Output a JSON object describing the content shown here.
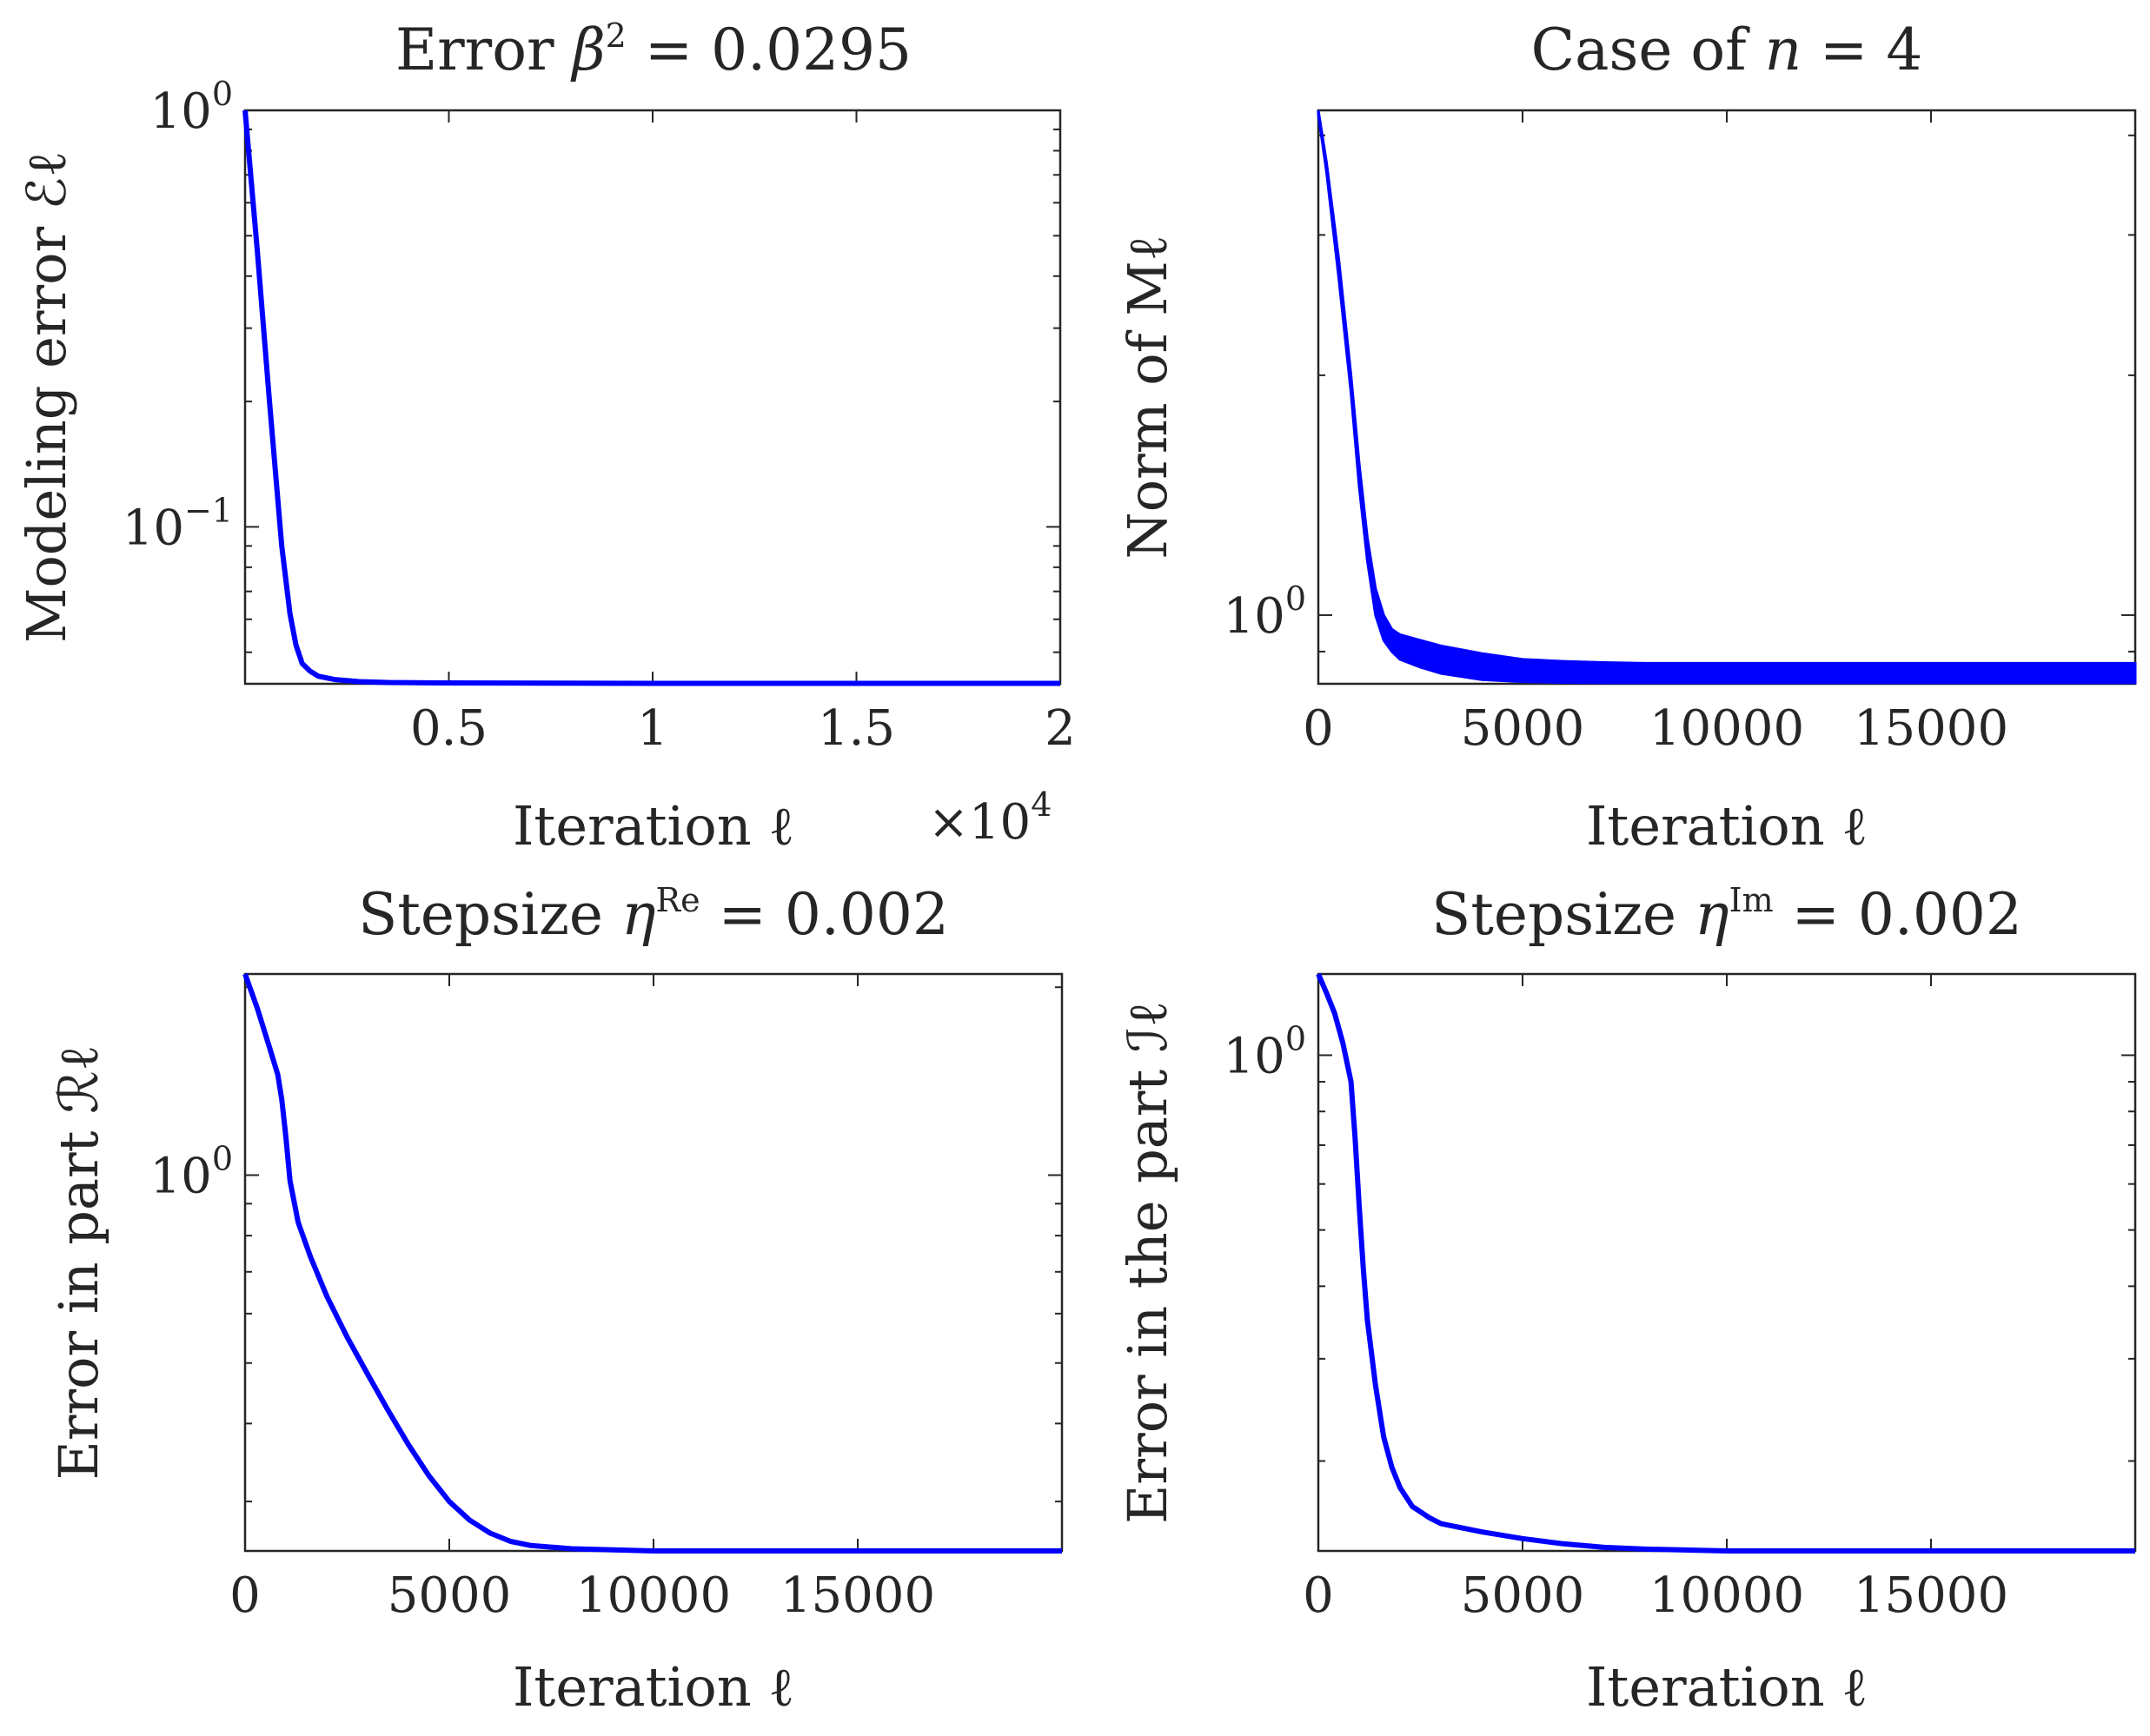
{
  "chart_data": [
    {
      "id": "tl",
      "type": "line",
      "title": "Error β² = 0.0295",
      "title_parts": {
        "pre": "Error ",
        "sym": "β",
        "sup": "2",
        "post": " = 0.0295"
      },
      "xlabel": "Iteration ℓ",
      "ylabel": "Modeling error ℰℓ",
      "x_multiplier": "×10",
      "x_multiplier_exp": "4",
      "xlim": [
        0,
        20000
      ],
      "yscale": "log",
      "ylim": [
        0.042,
        1.0
      ],
      "xticks": [
        {
          "v": 5000,
          "label": "0.5"
        },
        {
          "v": 10000,
          "label": "1"
        },
        {
          "v": 15000,
          "label": "1.5"
        },
        {
          "v": 20000,
          "label": "2"
        }
      ],
      "yticks": [
        {
          "v": 1.0,
          "base": "10",
          "exp": "0"
        },
        {
          "v": 0.1,
          "base": "10",
          "exp": "−1"
        }
      ],
      "series": [
        {
          "name": "ℰℓ",
          "color": "#0000ff",
          "x": [
            0,
            300,
            600,
            900,
            1100,
            1250,
            1400,
            1600,
            1800,
            2200,
            2800,
            3500,
            5000,
            10000,
            20000
          ],
          "y": [
            1.0,
            0.46,
            0.2,
            0.09,
            0.062,
            0.052,
            0.047,
            0.045,
            0.0438,
            0.043,
            0.0425,
            0.0423,
            0.0422,
            0.0421,
            0.0421
          ]
        }
      ]
    },
    {
      "id": "tr",
      "type": "line",
      "title": "Case of n = 4",
      "title_parts": {
        "pre": "Case of ",
        "sym": "n",
        "post": " = 4"
      },
      "xlabel": "Iteration ℓ",
      "ylabel": "Norm of Mℓ",
      "xlim": [
        0,
        20000
      ],
      "yscale": "log",
      "ylim": [
        0.82,
        4.3
      ],
      "xticks": [
        {
          "v": 0,
          "label": "0"
        },
        {
          "v": 5000,
          "label": "5000"
        },
        {
          "v": 10000,
          "label": "10000"
        },
        {
          "v": 15000,
          "label": "15000"
        }
      ],
      "yticks": [
        {
          "v": 1.0,
          "base": "10",
          "exp": "0"
        }
      ],
      "series": [
        {
          "name": "upper envelope",
          "color": "#0000ff",
          "x": [
            0,
            200,
            500,
            800,
            1000,
            1200,
            1400,
            1600,
            1800,
            2000,
            2500,
            3000,
            4000,
            5000,
            6000,
            7000,
            8000,
            10000,
            15000,
            20000
          ],
          "y": [
            4.3,
            3.7,
            2.8,
            2.0,
            1.55,
            1.25,
            1.08,
            1.0,
            0.96,
            0.945,
            0.93,
            0.915,
            0.895,
            0.88,
            0.875,
            0.872,
            0.87,
            0.87,
            0.87,
            0.87
          ]
        },
        {
          "name": "lower envelope",
          "color": "#0000ff",
          "x": [
            0,
            200,
            500,
            800,
            1000,
            1200,
            1400,
            1600,
            1800,
            2000,
            2500,
            3000,
            4000,
            5000,
            6000,
            7000,
            8000,
            10000,
            15000,
            20000
          ],
          "y": [
            4.25,
            3.6,
            2.65,
            1.9,
            1.45,
            1.17,
            1.0,
            0.93,
            0.9,
            0.88,
            0.86,
            0.845,
            0.83,
            0.825,
            0.823,
            0.822,
            0.822,
            0.822,
            0.822,
            0.822
          ]
        }
      ]
    },
    {
      "id": "bl",
      "type": "line",
      "title": "Stepsize ηRe = 0.002",
      "title_parts": {
        "pre": "Stepsize ",
        "sym": "η",
        "sup": "Re",
        "post": " = 0.002"
      },
      "xlabel": "Iteration ℓ",
      "ylabel": "Error in part ℛℓ",
      "xlim": [
        0,
        20000
      ],
      "yscale": "log",
      "ylim": [
        0.25,
        2.1
      ],
      "xticks": [
        {
          "v": 0,
          "label": "0"
        },
        {
          "v": 5000,
          "label": "5000"
        },
        {
          "v": 10000,
          "label": "10000"
        },
        {
          "v": 15000,
          "label": "15000"
        }
      ],
      "yticks": [
        {
          "v": 1.0,
          "base": "10",
          "exp": "0"
        }
      ],
      "series": [
        {
          "name": "ℛℓ",
          "color": "#0000ff",
          "x": [
            0,
            300,
            600,
            800,
            900,
            1000,
            1100,
            1300,
            1600,
            2000,
            2500,
            3000,
            3500,
            4000,
            4500,
            5000,
            5500,
            6000,
            6500,
            7000,
            8000,
            9000,
            10000,
            12000,
            15000,
            20000
          ],
          "y": [
            2.1,
            1.85,
            1.6,
            1.45,
            1.32,
            1.15,
            0.98,
            0.84,
            0.74,
            0.64,
            0.55,
            0.48,
            0.42,
            0.37,
            0.33,
            0.3,
            0.28,
            0.267,
            0.259,
            0.255,
            0.252,
            0.251,
            0.25,
            0.25,
            0.25,
            0.25
          ]
        }
      ]
    },
    {
      "id": "br",
      "type": "line",
      "title": "Stepsize ηIm = 0.002",
      "title_parts": {
        "pre": "Stepsize ",
        "sym": "η",
        "sup": "Im",
        "post": " = 0.002"
      },
      "xlabel": "Iteration ℓ",
      "ylabel": "Error in the part ℐℓ",
      "xlim": [
        0,
        20000
      ],
      "yscale": "log",
      "ylim": [
        0.14,
        1.38
      ],
      "xticks": [
        {
          "v": 0,
          "label": "0"
        },
        {
          "v": 5000,
          "label": "5000"
        },
        {
          "v": 10000,
          "label": "10000"
        },
        {
          "v": 15000,
          "label": "15000"
        }
      ],
      "yticks": [
        {
          "v": 1.0,
          "base": "10",
          "exp": "0"
        }
      ],
      "series": [
        {
          "name": "ℐℓ",
          "color": "#0000ff",
          "x": [
            0,
            200,
            400,
            600,
            800,
            900,
            1000,
            1100,
            1200,
            1400,
            1600,
            1800,
            2000,
            2300,
            2700,
            3000,
            4000,
            5000,
            6000,
            7000,
            8000,
            10000,
            15000,
            20000
          ],
          "y": [
            1.38,
            1.28,
            1.18,
            1.05,
            0.9,
            0.72,
            0.55,
            0.43,
            0.35,
            0.27,
            0.22,
            0.195,
            0.18,
            0.167,
            0.16,
            0.156,
            0.151,
            0.147,
            0.144,
            0.142,
            0.141,
            0.14,
            0.14,
            0.14
          ]
        }
      ]
    }
  ]
}
